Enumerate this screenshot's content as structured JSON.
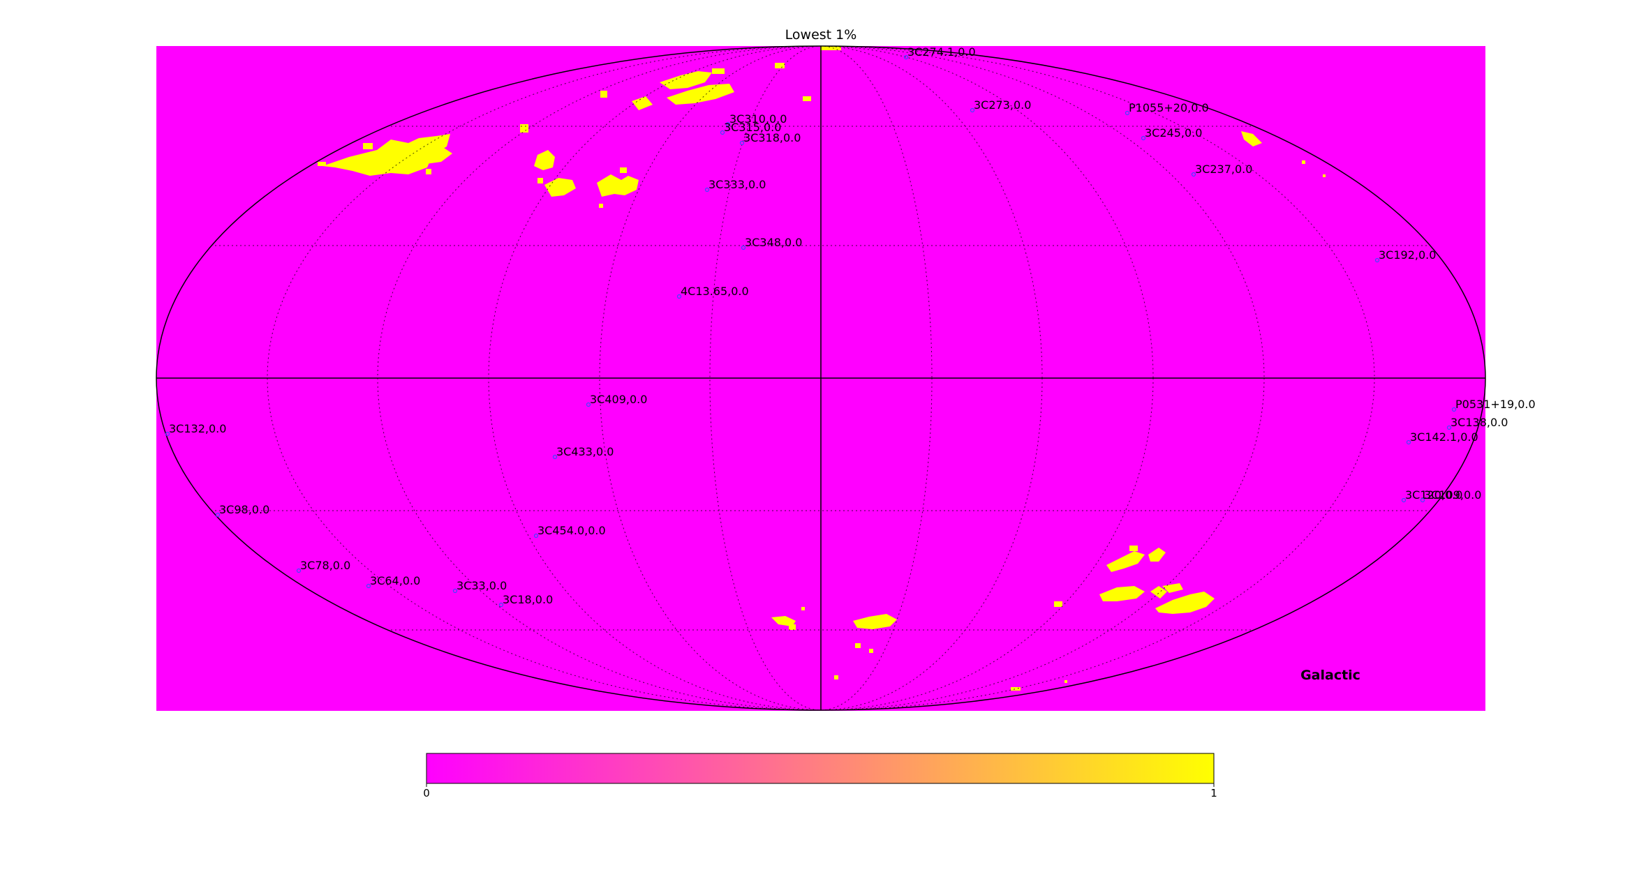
{
  "title": "Lowest 1%",
  "frame_label": "Galactic",
  "colors": {
    "background": "#ff00ff",
    "highlight": "#ffff00",
    "colorbar_low": "#ff00ff",
    "colorbar_high": "#ffff00",
    "outline": "#000000",
    "marker": "#4444ff"
  },
  "colorbar": {
    "min_label": "0",
    "max_label": "1"
  },
  "chart_data": {
    "type": "heatmap",
    "projection": "mollweide",
    "coordinate_frame": "Galactic",
    "value_range": [
      0,
      1
    ],
    "graticule": {
      "longitude_step_deg": 30,
      "latitude_step_deg": 30,
      "style": "dotted"
    },
    "sources": [
      {
        "label": "3C274.1,0.0"
      },
      {
        "label": "3C273,0.0"
      },
      {
        "label": "P1055+20,0.0"
      },
      {
        "label": "3C245,0.0"
      },
      {
        "label": "3C237,0.0"
      },
      {
        "label": "3C192,0.0"
      },
      {
        "label": "3C310,0.0"
      },
      {
        "label": "3C315,0.0"
      },
      {
        "label": "3C318,0.0"
      },
      {
        "label": "3C333,0.0"
      },
      {
        "label": "3C348,0.0"
      },
      {
        "label": "4C13.65,0.0"
      },
      {
        "label": "3C409,0.0"
      },
      {
        "label": "3C433,0.0"
      },
      {
        "label": "3C132,0.0"
      },
      {
        "label": "3C98,0.0"
      },
      {
        "label": "3C454.0,0.0"
      },
      {
        "label": "3C78,0.0"
      },
      {
        "label": "3C64,0.0"
      },
      {
        "label": "3C33,0.0"
      },
      {
        "label": "3C18,0.0"
      },
      {
        "label": "P0531+19,0.0"
      },
      {
        "label": "3C138,0.0"
      },
      {
        "label": "3C142.1,0.0"
      },
      {
        "label": "3C120,0.0"
      },
      {
        "label": "3C109,0.0"
      }
    ]
  }
}
